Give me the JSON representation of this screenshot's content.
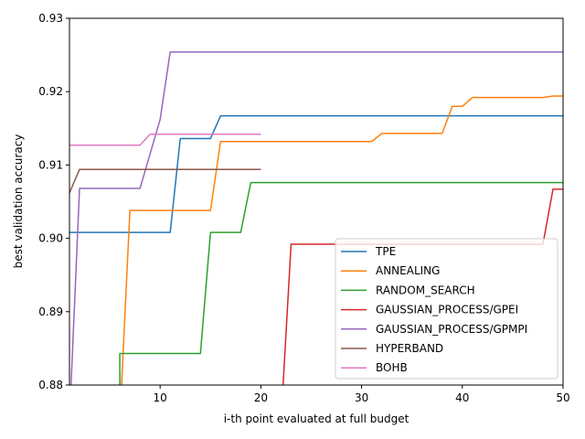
{
  "chart_data": {
    "type": "line",
    "xlabel": "i-th point evaluated at full budget",
    "ylabel": "best validation accuracy",
    "xlim": [
      1,
      50
    ],
    "ylim": [
      0.88,
      0.93
    ],
    "xticks": [
      10,
      20,
      30,
      40,
      50
    ],
    "yticks": [
      0.88,
      0.89,
      0.9,
      0.91,
      0.92,
      0.93
    ],
    "ytick_labels": [
      "0.88",
      "0.89",
      "0.90",
      "0.91",
      "0.92",
      "0.93"
    ],
    "grid": false,
    "legend_position": "lower-right",
    "series": [
      {
        "name": "TPE",
        "color": "#1f77b4",
        "points": [
          [
            1,
            0.9008
          ],
          [
            11,
            0.9008
          ],
          [
            12,
            0.9136
          ],
          [
            15,
            0.9136
          ],
          [
            16,
            0.9167
          ],
          [
            50,
            0.9167
          ]
        ]
      },
      {
        "name": "ANNEALING",
        "color": "#ff7f0e",
        "points": [
          [
            6,
            0.875
          ],
          [
            7,
            0.9038
          ],
          [
            15,
            0.9038
          ],
          [
            16,
            0.9132
          ],
          [
            31,
            0.9132
          ],
          [
            32,
            0.9143
          ],
          [
            38,
            0.9143
          ],
          [
            39,
            0.918
          ],
          [
            40,
            0.918
          ],
          [
            41,
            0.9192
          ],
          [
            48,
            0.9192
          ],
          [
            49,
            0.9194
          ],
          [
            50,
            0.9194
          ]
        ]
      },
      {
        "name": "RANDOM_SEARCH",
        "color": "#2ca02c",
        "points": [
          [
            6,
            0.875
          ],
          [
            6,
            0.8843
          ],
          [
            14,
            0.8843
          ],
          [
            15,
            0.9008
          ],
          [
            18,
            0.9008
          ],
          [
            19,
            0.9076
          ],
          [
            50,
            0.9076
          ]
        ]
      },
      {
        "name": "GAUSSIAN_PROCESS/GPEI",
        "color": "#d62728",
        "points": [
          [
            22,
            0.875
          ],
          [
            23,
            0.8992
          ],
          [
            48,
            0.8992
          ],
          [
            49,
            0.9067
          ],
          [
            50,
            0.9067
          ]
        ]
      },
      {
        "name": "GAUSSIAN_PROCESS/GPMPI",
        "color": "#9467bd",
        "points": [
          [
            1,
            0.875
          ],
          [
            2,
            0.9068
          ],
          [
            8,
            0.9068
          ],
          [
            10,
            0.9162
          ],
          [
            11,
            0.9254
          ],
          [
            50,
            0.9254
          ]
        ]
      },
      {
        "name": "HYPERBAND",
        "color": "#8c564b",
        "points": [
          [
            1,
            0.9062
          ],
          [
            2,
            0.9094
          ],
          [
            20,
            0.9094
          ]
        ]
      },
      {
        "name": "BOHB",
        "color": "#e377c2",
        "points": [
          [
            1,
            0.9127
          ],
          [
            8,
            0.9127
          ],
          [
            9,
            0.9142
          ],
          [
            20,
            0.9142
          ]
        ]
      }
    ]
  }
}
